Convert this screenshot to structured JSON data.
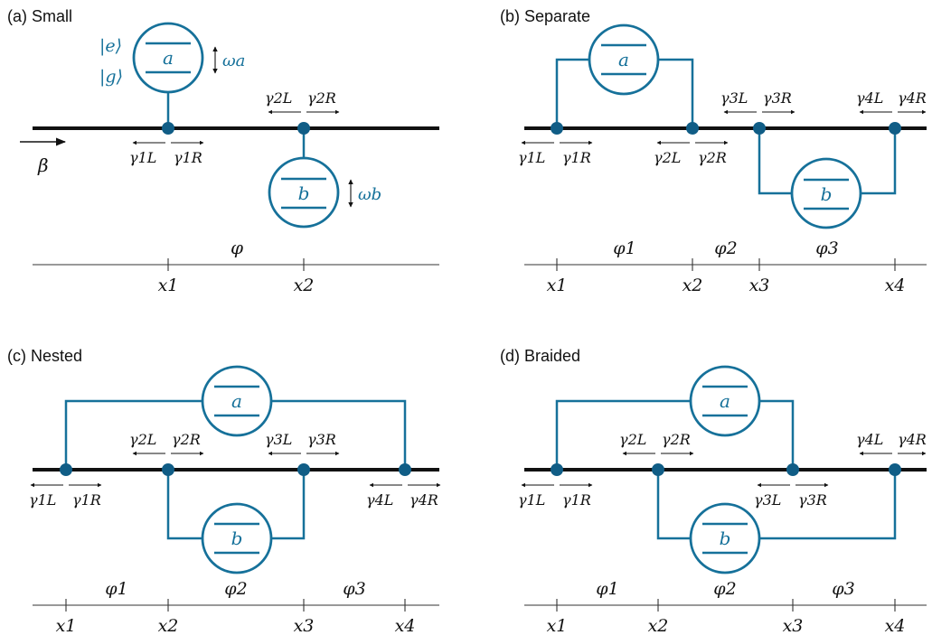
{
  "colors": {
    "atom": "#16719a",
    "node": "#105d86",
    "waveguide": "#111111"
  },
  "panels": {
    "a": {
      "title": "(a) Small",
      "atom_a": "a",
      "atom_b": "b",
      "state_e": "|e⟩",
      "state_g": "|g⟩",
      "freq_a": "ωa",
      "freq_b": "ωb",
      "input": "β",
      "g1L": "γ1L",
      "g1R": "γ1R",
      "g2L": "γ2L",
      "g2R": "γ2R",
      "phi": "φ",
      "x1": "x1",
      "x2": "x2"
    },
    "b": {
      "title": "(b) Separate",
      "atom_a": "a",
      "atom_b": "b",
      "g1L": "γ1L",
      "g1R": "γ1R",
      "g2L": "γ2L",
      "g2R": "γ2R",
      "g3L": "γ3L",
      "g3R": "γ3R",
      "g4L": "γ4L",
      "g4R": "γ4R",
      "phi1": "φ1",
      "phi2": "φ2",
      "phi3": "φ3",
      "x1": "x1",
      "x2": "x2",
      "x3": "x3",
      "x4": "x4"
    },
    "c": {
      "title": "(c) Nested",
      "atom_a": "a",
      "atom_b": "b",
      "g1L": "γ1L",
      "g1R": "γ1R",
      "g2L": "γ2L",
      "g2R": "γ2R",
      "g3L": "γ3L",
      "g3R": "γ3R",
      "g4L": "γ4L",
      "g4R": "γ4R",
      "phi1": "φ1",
      "phi2": "φ2",
      "phi3": "φ3",
      "x1": "x1",
      "x2": "x2",
      "x3": "x3",
      "x4": "x4"
    },
    "d": {
      "title": "(d) Braided",
      "atom_a": "a",
      "atom_b": "b",
      "g1L": "γ1L",
      "g1R": "γ1R",
      "g2L": "γ2L",
      "g2R": "γ2R",
      "g3L": "γ3L",
      "g3R": "γ3R",
      "g4L": "γ4L",
      "g4R": "γ4R",
      "phi1": "φ1",
      "phi2": "φ2",
      "phi3": "φ3",
      "x1": "x1",
      "x2": "x2",
      "x3": "x3",
      "x4": "x4"
    }
  }
}
